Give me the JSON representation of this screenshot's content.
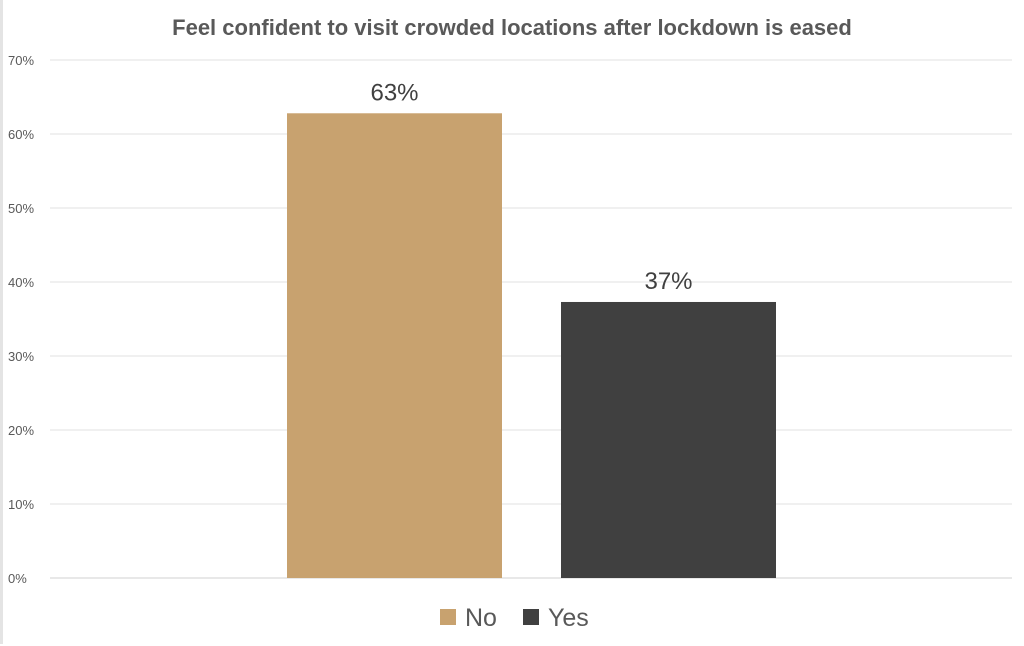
{
  "chart_data": {
    "type": "bar",
    "title": "Feel confident to visit crowded locations after lockdown is eased",
    "categories": [
      "No",
      "Yes"
    ],
    "values": [
      62.8,
      37.3
    ],
    "data_labels": [
      "63%",
      "37%"
    ],
    "colors": [
      "#c8a26f",
      "#404040"
    ],
    "xlabel": "",
    "ylabel": "",
    "ylim": [
      0,
      70
    ],
    "yticks": [
      "0%",
      "10%",
      "20%",
      "30%",
      "40%",
      "50%",
      "60%",
      "70%"
    ],
    "grid": true,
    "legend": {
      "placement": "bottom",
      "entries": [
        "No",
        "Yes"
      ]
    }
  }
}
